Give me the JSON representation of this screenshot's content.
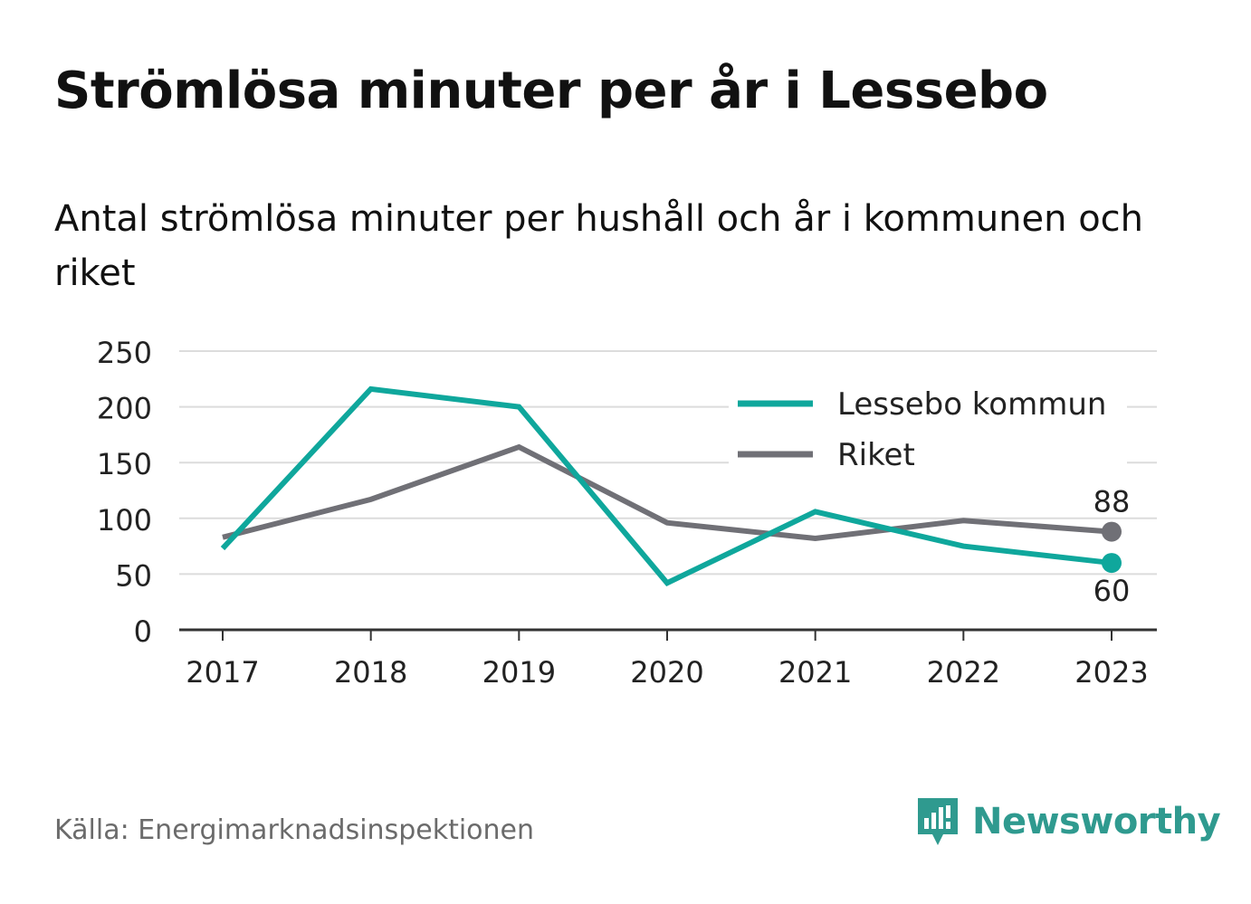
{
  "title": "Strömlösa minuter per år i Lessebo",
  "subtitle": "Antal strömlösa minuter per hushåll och år i kommunen och riket",
  "source": "Källa: Energimarknadsinspektionen",
  "brand": {
    "name": "Newsworthy",
    "color": "#2f9a8f"
  },
  "chart_data": {
    "type": "line",
    "x": [
      "2017",
      "2018",
      "2019",
      "2020",
      "2021",
      "2022",
      "2023"
    ],
    "ylim": [
      0,
      250
    ],
    "yticks": [
      "0",
      "50",
      "100",
      "150",
      "200",
      "250"
    ],
    "grid": true,
    "legend_position": "top-right",
    "series": [
      {
        "name": "Lessebo kommun",
        "color": "#0fa79c",
        "values": [
          73,
          216,
          200,
          42,
          106,
          75,
          60
        ],
        "end_label": "60"
      },
      {
        "name": "Riket",
        "color": "#707076",
        "values": [
          83,
          117,
          164,
          96,
          82,
          98,
          88
        ],
        "end_label": "88"
      }
    ]
  }
}
